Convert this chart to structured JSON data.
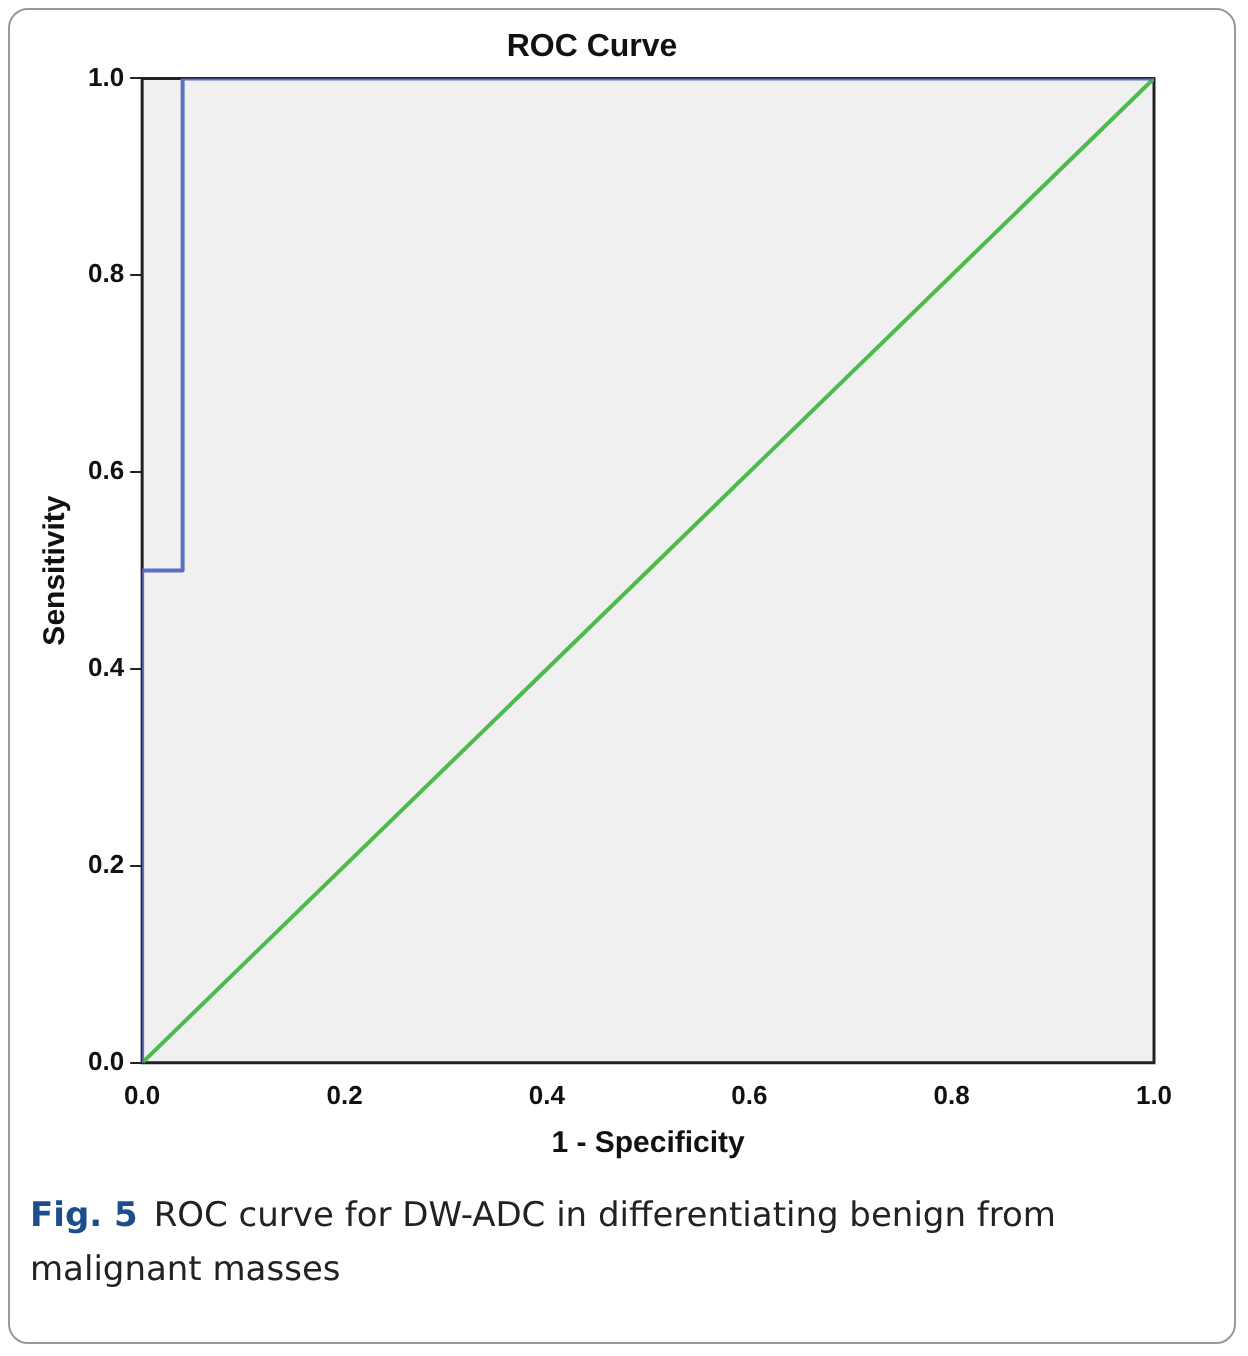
{
  "chart_data": {
    "type": "line",
    "title": "ROC Curve",
    "xlabel": "1 - Specificity",
    "ylabel": "Sensitivity",
    "annotations": [
      "Fig. 5",
      "ROC curve for DW-ADC in differentiating benign from malignant masses"
    ],
    "series": [
      {
        "color": "#5b6fbf",
        "x": [
          0,
          0,
          0.04,
          0.04,
          1
        ],
        "values": [
          0,
          0.5,
          0.5,
          1,
          1
        ]
      },
      {
        "color": "#4cbb4c",
        "x": [
          0,
          1
        ],
        "values": [
          0,
          1
        ]
      }
    ],
    "xlim": [
      0,
      1
    ],
    "xticks": [
      {
        "value": 0,
        "label": "0.0"
      },
      {
        "value": 0.2,
        "label": "0.2"
      },
      {
        "value": 0.4,
        "label": "0.4"
      },
      {
        "value": 0.6,
        "label": "0.6"
      },
      {
        "value": 0.8,
        "label": "0.8"
      },
      {
        "value": 1,
        "label": "1.0"
      }
    ],
    "ylim": [
      0,
      1
    ],
    "yticks": [
      {
        "value": 0,
        "label": "0.0"
      },
      {
        "value": 0.2,
        "label": "0.2"
      },
      {
        "value": 0.4,
        "label": "0.4"
      },
      {
        "value": 0.6,
        "label": "0.6"
      },
      {
        "value": 0.8,
        "label": "0.8"
      },
      {
        "value": 1,
        "label": "1.0"
      }
    ],
    "grid": false,
    "legend": false,
    "marker": "none"
  }
}
